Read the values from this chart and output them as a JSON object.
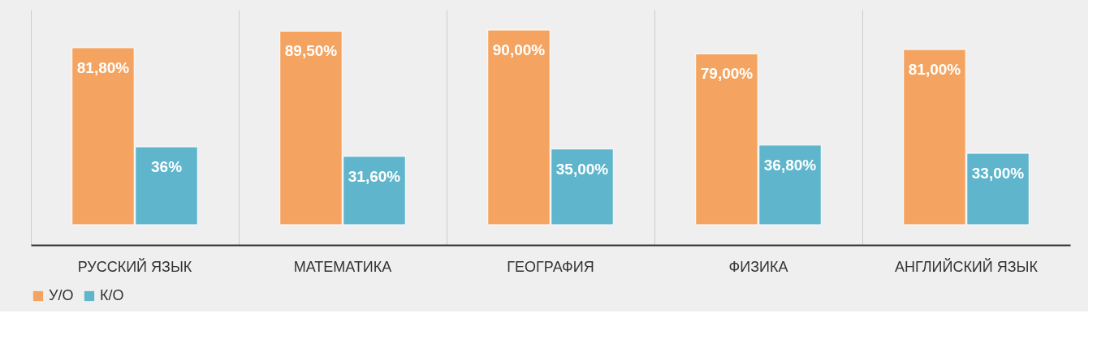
{
  "chart_data": {
    "type": "bar",
    "categories": [
      "РУССКИЙ ЯЗЫК",
      "МАТЕМАТИКА",
      "ГЕОГРАФИЯ",
      "ФИЗИКА",
      "АНГЛИЙСКИЙ ЯЗЫК"
    ],
    "series": [
      {
        "name": "У/О",
        "color": "#f4a460",
        "values": [
          81.8,
          89.5,
          90,
          79,
          81
        ],
        "value_labels": [
          "81,80%",
          "89,50%",
          "90,00%",
          "79,00%",
          "81,00%"
        ]
      },
      {
        "name": "К/О",
        "color": "#5eb5cc",
        "values": [
          36,
          31.6,
          35,
          36.8,
          33
        ],
        "value_labels": [
          "36%",
          "31,60%",
          "35,00%",
          "36,80%",
          "33,00%"
        ]
      }
    ],
    "grid": "x",
    "legend": "bottom"
  }
}
